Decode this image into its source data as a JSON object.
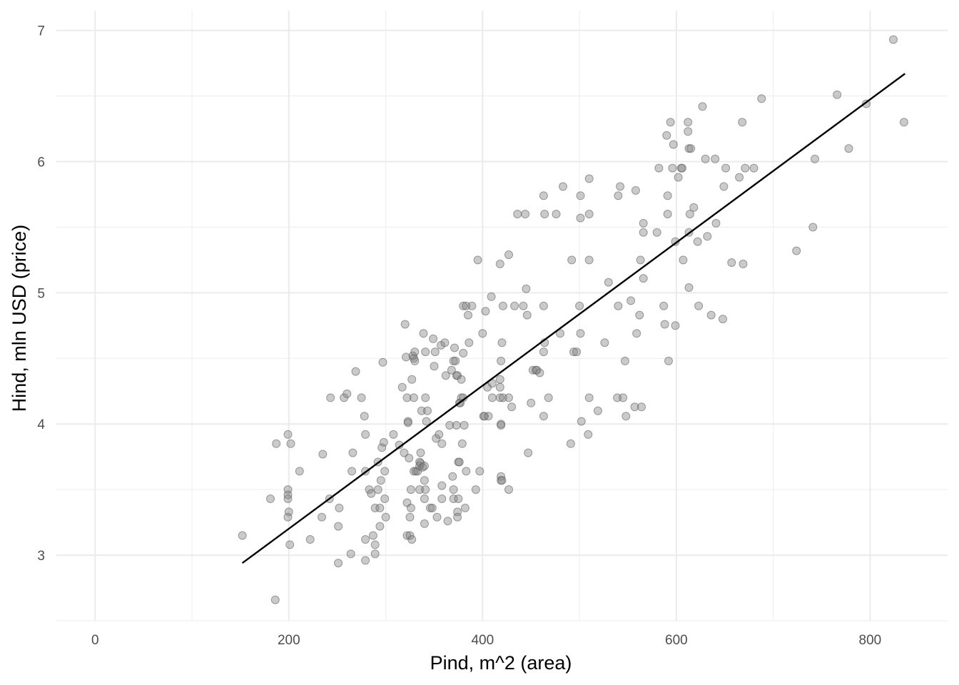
{
  "chart_data": {
    "type": "scatter",
    "title": "",
    "xlabel": "Pind, m^2 (area)",
    "ylabel": "Hind, mln USD (price)",
    "xlim": [
      -40,
      880
    ],
    "ylim": [
      2.5,
      7.15
    ],
    "x_ticks": [
      0,
      200,
      400,
      600,
      800
    ],
    "x_tick_labels": [
      "0",
      "200",
      "400",
      "600",
      "800"
    ],
    "y_ticks": [
      3,
      4,
      5,
      6,
      7
    ],
    "y_tick_labels": [
      "3",
      "4",
      "5",
      "6",
      "7"
    ],
    "grid": true,
    "point_color": "#808080",
    "line_color": "#000000",
    "regression_line": [
      [
        152,
        2.94
      ],
      [
        836,
        6.67
      ]
    ],
    "points": [
      [
        152,
        3.15
      ],
      [
        181,
        3.43
      ],
      [
        186,
        2.66
      ],
      [
        187,
        3.85
      ],
      [
        199,
        3.92
      ],
      [
        199,
        3.5
      ],
      [
        199,
        3.46
      ],
      [
        199,
        3.43
      ],
      [
        200,
        3.33
      ],
      [
        199,
        3.29
      ],
      [
        201,
        3.08
      ],
      [
        202,
        3.85
      ],
      [
        211,
        3.64
      ],
      [
        222,
        3.12
      ],
      [
        234,
        3.29
      ],
      [
        235,
        3.77
      ],
      [
        242,
        3.43
      ],
      [
        243,
        4.2
      ],
      [
        251,
        3.22
      ],
      [
        251,
        2.94
      ],
      [
        252,
        3.36
      ],
      [
        257,
        4.2
      ],
      [
        260,
        4.23
      ],
      [
        264,
        3.01
      ],
      [
        265,
        3.64
      ],
      [
        266,
        3.78
      ],
      [
        269,
        4.4
      ],
      [
        275,
        4.2
      ],
      [
        278,
        4.06
      ],
      [
        279,
        3.92
      ],
      [
        279,
        3.64
      ],
      [
        279,
        3.12
      ],
      [
        279,
        2.96
      ],
      [
        283,
        3.5
      ],
      [
        285,
        3.47
      ],
      [
        287,
        3.15
      ],
      [
        289,
        3.01
      ],
      [
        289,
        3.08
      ],
      [
        289,
        3.36
      ],
      [
        292,
        3.71
      ],
      [
        292,
        3.5
      ],
      [
        294,
        3.22
      ],
      [
        294,
        3.36
      ],
      [
        295,
        3.57
      ],
      [
        296,
        3.82
      ],
      [
        297,
        4.47
      ],
      [
        298,
        3.86
      ],
      [
        299,
        3.64
      ],
      [
        299,
        3.43
      ],
      [
        300,
        3.29
      ],
      [
        308,
        3.92
      ],
      [
        314,
        3.84
      ],
      [
        317,
        4.28
      ],
      [
        319,
        3.78
      ],
      [
        320,
        4.76
      ],
      [
        321,
        4.51
      ],
      [
        322,
        4.2
      ],
      [
        322,
        3.4
      ],
      [
        322,
        3.15
      ],
      [
        323,
        4.02
      ],
      [
        323,
        4.01
      ],
      [
        324,
        3.74
      ],
      [
        325,
        3.29
      ],
      [
        325,
        3.15
      ],
      [
        326,
        3.5
      ],
      [
        326,
        3.36
      ],
      [
        327,
        3.12
      ],
      [
        327,
        4.34
      ],
      [
        328,
        4.52
      ],
      [
        329,
        4.5
      ],
      [
        329,
        4.2
      ],
      [
        329,
        3.64
      ],
      [
        330,
        4.55
      ],
      [
        330,
        4.48
      ],
      [
        331,
        3.64
      ],
      [
        333,
        3.64
      ],
      [
        335,
        3.71
      ],
      [
        335,
        3.68
      ],
      [
        335,
        3.5
      ],
      [
        336,
        3.7
      ],
      [
        336,
        3.78
      ],
      [
        337,
        4.1
      ],
      [
        338,
        3.67
      ],
      [
        339,
        4.69
      ],
      [
        340,
        3.68
      ],
      [
        340,
        3.57
      ],
      [
        340,
        3.43
      ],
      [
        340,
        3.24
      ],
      [
        341,
        4.55
      ],
      [
        341,
        4.2
      ],
      [
        341,
        3.5
      ],
      [
        342,
        4.02
      ],
      [
        343,
        4.1
      ],
      [
        346,
        3.36
      ],
      [
        348,
        3.36
      ],
      [
        349,
        4.65
      ],
      [
        350,
        4.44
      ],
      [
        351,
        4.55
      ],
      [
        352,
        3.89
      ],
      [
        353,
        3.29
      ],
      [
        355,
        3.92
      ],
      [
        357,
        4.6
      ],
      [
        358,
        3.85
      ],
      [
        358,
        3.43
      ],
      [
        358,
        3.53
      ],
      [
        361,
        4.62
      ],
      [
        362,
        4.37
      ],
      [
        364,
        3.26
      ],
      [
        366,
        3.99
      ],
      [
        368,
        4.41
      ],
      [
        369,
        3.6
      ],
      [
        370,
        3.5
      ],
      [
        370,
        3.43
      ],
      [
        370,
        4.48
      ],
      [
        371,
        4.58
      ],
      [
        372,
        4.48
      ],
      [
        373,
        3.99
      ],
      [
        373,
        4.37
      ],
      [
        374,
        4.37
      ],
      [
        374,
        3.33
      ],
      [
        374,
        3.29
      ],
      [
        375,
        3.71
      ],
      [
        375,
        3.43
      ],
      [
        376,
        3.71
      ],
      [
        376,
        4.16
      ],
      [
        377,
        4.16
      ],
      [
        378,
        4.2
      ],
      [
        378,
        4.34
      ],
      [
        379,
        3.85
      ],
      [
        380,
        4.9
      ],
      [
        380,
        4.54
      ],
      [
        380,
        4.2
      ],
      [
        381,
        3.99
      ],
      [
        382,
        3.36
      ],
      [
        383,
        4.9
      ],
      [
        383,
        3.64
      ],
      [
        385,
        4.83
      ],
      [
        386,
        4.62
      ],
      [
        389,
        4.9
      ],
      [
        393,
        3.5
      ],
      [
        395,
        5.25
      ],
      [
        397,
        3.64
      ],
      [
        400,
        4.69
      ],
      [
        401,
        4.06
      ],
      [
        402,
        4.06
      ],
      [
        403,
        4.86
      ],
      [
        405,
        4.28
      ],
      [
        406,
        4.06
      ],
      [
        409,
        4.97
      ],
      [
        410,
        4.2
      ],
      [
        410,
        4.31
      ],
      [
        418,
        5.22
      ],
      [
        418,
        4.2
      ],
      [
        418,
        4.34
      ],
      [
        418,
        4.28
      ],
      [
        419,
        4.48
      ],
      [
        419,
        4.0
      ],
      [
        419,
        3.99
      ],
      [
        419,
        3.6
      ],
      [
        419,
        3.57
      ],
      [
        420,
        4.62
      ],
      [
        420,
        3.57
      ],
      [
        421,
        4.9
      ],
      [
        421,
        4.2
      ],
      [
        427,
        5.29
      ],
      [
        427,
        4.2
      ],
      [
        427,
        3.5
      ],
      [
        430,
        4.13
      ],
      [
        433,
        4.9
      ],
      [
        436,
        5.6
      ],
      [
        442,
        4.9
      ],
      [
        444,
        5.6
      ],
      [
        445,
        5.03
      ],
      [
        446,
        4.83
      ],
      [
        447,
        3.78
      ],
      [
        450,
        4.16
      ],
      [
        452,
        4.41
      ],
      [
        455,
        4.41
      ],
      [
        456,
        4.41
      ],
      [
        459,
        4.39
      ],
      [
        463,
        4.06
      ],
      [
        463,
        4.9
      ],
      [
        463,
        4.55
      ],
      [
        463,
        5.74
      ],
      [
        464,
        4.62
      ],
      [
        464,
        5.6
      ],
      [
        468,
        4.2
      ],
      [
        476,
        5.6
      ],
      [
        480,
        4.69
      ],
      [
        483,
        5.81
      ],
      [
        491,
        3.85
      ],
      [
        492,
        5.25
      ],
      [
        494,
        4.55
      ],
      [
        497,
        4.55
      ],
      [
        500,
        4.9
      ],
      [
        501,
        4.69
      ],
      [
        501,
        5.74
      ],
      [
        501,
        5.57
      ],
      [
        502,
        4.02
      ],
      [
        509,
        3.92
      ],
      [
        510,
        5.87
      ],
      [
        510,
        5.6
      ],
      [
        510,
        4.2
      ],
      [
        510,
        5.25
      ],
      [
        519,
        4.1
      ],
      [
        526,
        4.62
      ],
      [
        530,
        5.08
      ],
      [
        539,
        4.2
      ],
      [
        540,
        4.9
      ],
      [
        540,
        5.74
      ],
      [
        542,
        5.81
      ],
      [
        545,
        4.2
      ],
      [
        547,
        4.48
      ],
      [
        548,
        4.06
      ],
      [
        553,
        4.94
      ],
      [
        557,
        4.13
      ],
      [
        558,
        5.78
      ],
      [
        559,
        4.69
      ],
      [
        562,
        4.83
      ],
      [
        563,
        5.25
      ],
      [
        564,
        4.13
      ],
      [
        566,
        5.11
      ],
      [
        566,
        5.46
      ],
      [
        566,
        5.53
      ],
      [
        580,
        5.46
      ],
      [
        582,
        5.95
      ],
      [
        587,
        4.9
      ],
      [
        588,
        4.76
      ],
      [
        590,
        6.2
      ],
      [
        591,
        5.6
      ],
      [
        591,
        5.74
      ],
      [
        592,
        4.48
      ],
      [
        594,
        6.3
      ],
      [
        596,
        5.95
      ],
      [
        597,
        6.13
      ],
      [
        599,
        4.75
      ],
      [
        599,
        5.39
      ],
      [
        602,
        5.88
      ],
      [
        605,
        5.95
      ],
      [
        606,
        5.95
      ],
      [
        607,
        5.25
      ],
      [
        612,
        6.3
      ],
      [
        612,
        6.23
      ],
      [
        613,
        6.1
      ],
      [
        613,
        5.04
      ],
      [
        613,
        5.46
      ],
      [
        614,
        5.6
      ],
      [
        615,
        6.1
      ],
      [
        618,
        5.65
      ],
      [
        622,
        5.39
      ],
      [
        623,
        4.9
      ],
      [
        627,
        6.42
      ],
      [
        630,
        6.02
      ],
      [
        632,
        5.43
      ],
      [
        636,
        4.83
      ],
      [
        640,
        6.02
      ],
      [
        641,
        5.53
      ],
      [
        648,
        4.8
      ],
      [
        649,
        5.81
      ],
      [
        651,
        5.95
      ],
      [
        657,
        5.23
      ],
      [
        665,
        5.88
      ],
      [
        668,
        6.3
      ],
      [
        669,
        5.22
      ],
      [
        671,
        5.95
      ],
      [
        680,
        5.95
      ],
      [
        688,
        6.48
      ],
      [
        724,
        5.32
      ],
      [
        741,
        5.5
      ],
      [
        743,
        6.02
      ],
      [
        766,
        6.51
      ],
      [
        778,
        6.1
      ],
      [
        796,
        6.44
      ],
      [
        824,
        6.93
      ],
      [
        835,
        6.3
      ]
    ]
  }
}
